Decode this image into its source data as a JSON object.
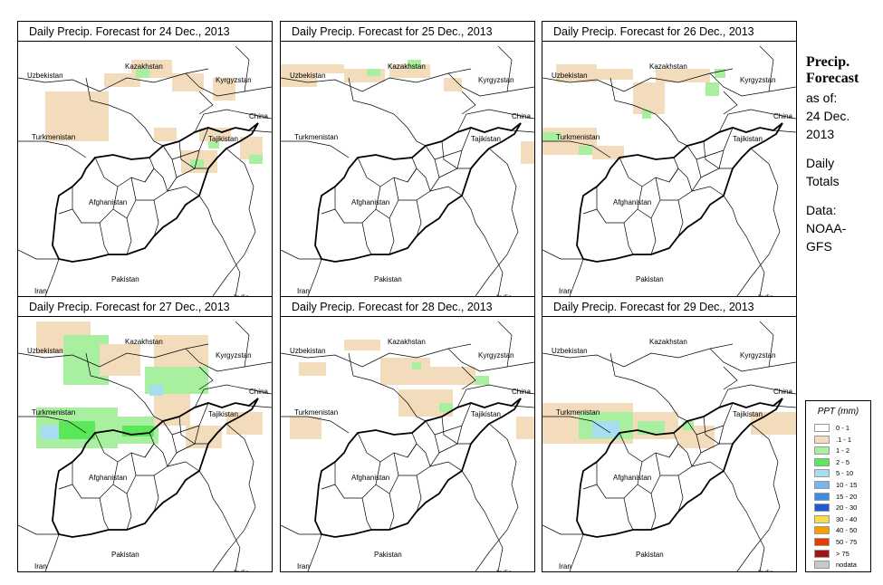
{
  "panels": [
    {
      "title": "Daily Precip. Forecast for  24 Dec., 2013",
      "day": "24"
    },
    {
      "title": "Daily Precip. Forecast for  25 Dec., 2013",
      "day": "25"
    },
    {
      "title": "Daily Precip. Forecast for  26 Dec., 2013",
      "day": "26"
    },
    {
      "title": "Daily Precip. Forecast for  27 Dec., 2013",
      "day": "27"
    },
    {
      "title": "Daily Precip. Forecast for  28 Dec., 2013",
      "day": "28"
    },
    {
      "title": "Daily Precip. Forecast for  29 Dec., 2013",
      "day": "29"
    }
  ],
  "country_labels": {
    "uzbekistan": "Uzbekistan",
    "kazakhstan": "Kazakhstan",
    "kyrgyzstan": "Kyrgyzstan",
    "china": "China",
    "turkmenistan": "Turkmenistan",
    "tajikistan": "Tajikistan",
    "afghanistan": "Afghanistan",
    "iran": "Iran",
    "pakistan": "Pakistan",
    "india": "India"
  },
  "side_info": {
    "title_line1": "Precip.",
    "title_line2": "Forecast",
    "asof": "as of:",
    "date_line1": "24 Dec.",
    "date_line2": "2013",
    "daily_line1": "Daily",
    "daily_line2": "Totals",
    "data_line1": "Data:",
    "data_line2": "NOAA-",
    "data_line3": "GFS"
  },
  "legend": {
    "title": "PPT (mm)",
    "items": [
      {
        "label": "0 - 1",
        "color": "#ffffff"
      },
      {
        "label": ".1 - 1",
        "color": "#f2dcbc"
      },
      {
        "label": "1 - 2",
        "color": "#a8f0a0"
      },
      {
        "label": "2 - 5",
        "color": "#5ae85a"
      },
      {
        "label": "5 - 10",
        "color": "#a8dcf0"
      },
      {
        "label": "10 - 15",
        "color": "#78b4f0"
      },
      {
        "label": "15 - 20",
        "color": "#3c8ce6"
      },
      {
        "label": "20 - 30",
        "color": "#1e5ad2"
      },
      {
        "label": "30 - 40",
        "color": "#f5dc50"
      },
      {
        "label": "40 - 50",
        "color": "#f5a000"
      },
      {
        "label": "50 - 75",
        "color": "#e63c00"
      },
      {
        "label": "> 75",
        "color": "#a01414"
      },
      {
        "label": "nodata",
        "color": "#c8c8c8"
      }
    ]
  }
}
